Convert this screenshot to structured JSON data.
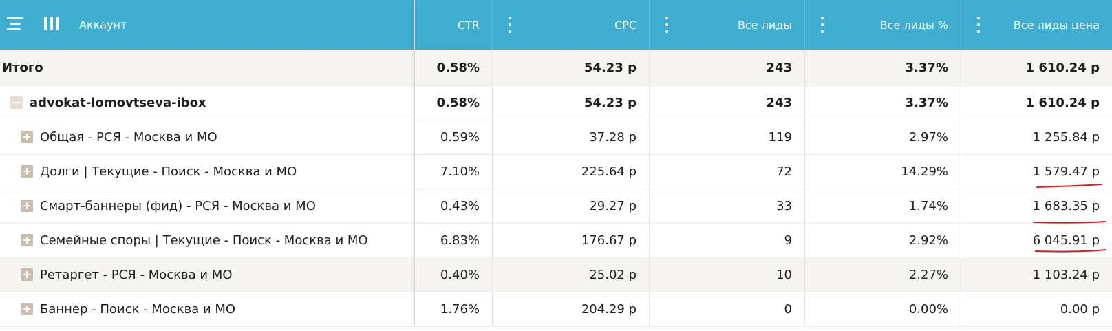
{
  "header": {
    "account_label": "Аккаунт",
    "columns": [
      "CTR",
      "CPC",
      "Все лиды",
      "Все лиды %",
      "Все лиды цена"
    ]
  },
  "rows": [
    {
      "name": "Итого",
      "ctr": "0.58%",
      "cpc": "54.23 р",
      "leads": "243",
      "leads_pct": "3.37%",
      "leads_price": "1 610.24 р"
    },
    {
      "name": "advokat-lomovtseva-ibox",
      "ctr": "0.58%",
      "cpc": "54.23 р",
      "leads": "243",
      "leads_pct": "3.37%",
      "leads_price": "1 610.24 р"
    },
    {
      "name": "Общая - РСЯ - Москва и МО",
      "ctr": "0.59%",
      "cpc": "37.28 р",
      "leads": "119",
      "leads_pct": "2.97%",
      "leads_price": "1 255.84 р"
    },
    {
      "name": "Долги | Текущие - Поиск - Москва и МО",
      "ctr": "7.10%",
      "cpc": "225.64 р",
      "leads": "72",
      "leads_pct": "14.29%",
      "leads_price": "1 579.47 р"
    },
    {
      "name": "Смарт-баннеры (фид) - РСЯ - Москва и МО",
      "ctr": "0.43%",
      "cpc": "29.27 р",
      "leads": "33",
      "leads_pct": "1.74%",
      "leads_price": "1 683.35 р"
    },
    {
      "name": "Семейные споры | Текущие - Поиск - Москва и МО",
      "ctr": "6.83%",
      "cpc": "176.67 р",
      "leads": "9",
      "leads_pct": "2.92%",
      "leads_price": "6 045.91 р"
    },
    {
      "name": "Ретаргет - РСЯ - Москва и МО",
      "ctr": "0.40%",
      "cpc": "25.02 р",
      "leads": "10",
      "leads_pct": "2.27%",
      "leads_price": "1 103.24 р"
    },
    {
      "name": "Баннер - Поиск - Москва и МО",
      "ctr": "1.76%",
      "cpc": "204.29 р",
      "leads": "0",
      "leads_pct": "0.00%",
      "leads_price": "0.00 р"
    }
  ],
  "colors": {
    "header_bg": "#3eadd0",
    "shaded_row": "#f5f4f1",
    "annotation": "#e0191f"
  }
}
